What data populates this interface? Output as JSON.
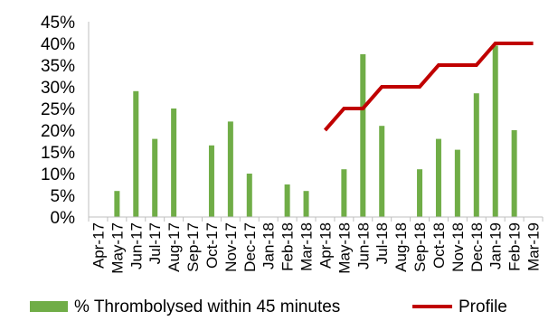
{
  "chart_data": {
    "type": "bar",
    "categories": [
      "Apr-17",
      "May-17",
      "Jun-17",
      "Jul-17",
      "Aug-17",
      "Sep-17",
      "Oct-17",
      "Nov-17",
      "Dec-17",
      "Jan-18",
      "Feb-18",
      "Mar-18",
      "Apr-18",
      "May-18",
      "Jun-18",
      "Jul-18",
      "Aug-18",
      "Sep-18",
      "Oct-18",
      "Nov-18",
      "Dec-18",
      "Jan-19",
      "Feb-19",
      "Mar-19"
    ],
    "ylim": [
      0,
      45
    ],
    "yticks": [
      "0%",
      "5%",
      "10%",
      "15%",
      "20%",
      "25%",
      "30%",
      "35%",
      "40%",
      "45%"
    ],
    "grid": false,
    "legend_position": "bottom",
    "series": [
      {
        "name": "% Thrombolysed within 45 minutes",
        "type": "bar",
        "color": "#70AD47",
        "values": [
          null,
          6,
          29,
          18,
          25,
          null,
          16.5,
          22,
          10,
          null,
          7.5,
          6,
          null,
          11,
          37.5,
          21,
          null,
          11,
          18,
          15.5,
          28.5,
          39.5,
          20,
          null
        ]
      },
      {
        "name": "Profile",
        "type": "line",
        "color": "#C00000",
        "values": [
          null,
          null,
          null,
          null,
          null,
          null,
          null,
          null,
          null,
          null,
          null,
          null,
          20,
          25,
          25,
          30,
          30,
          30,
          35,
          35,
          35,
          40,
          40,
          40
        ]
      }
    ]
  }
}
